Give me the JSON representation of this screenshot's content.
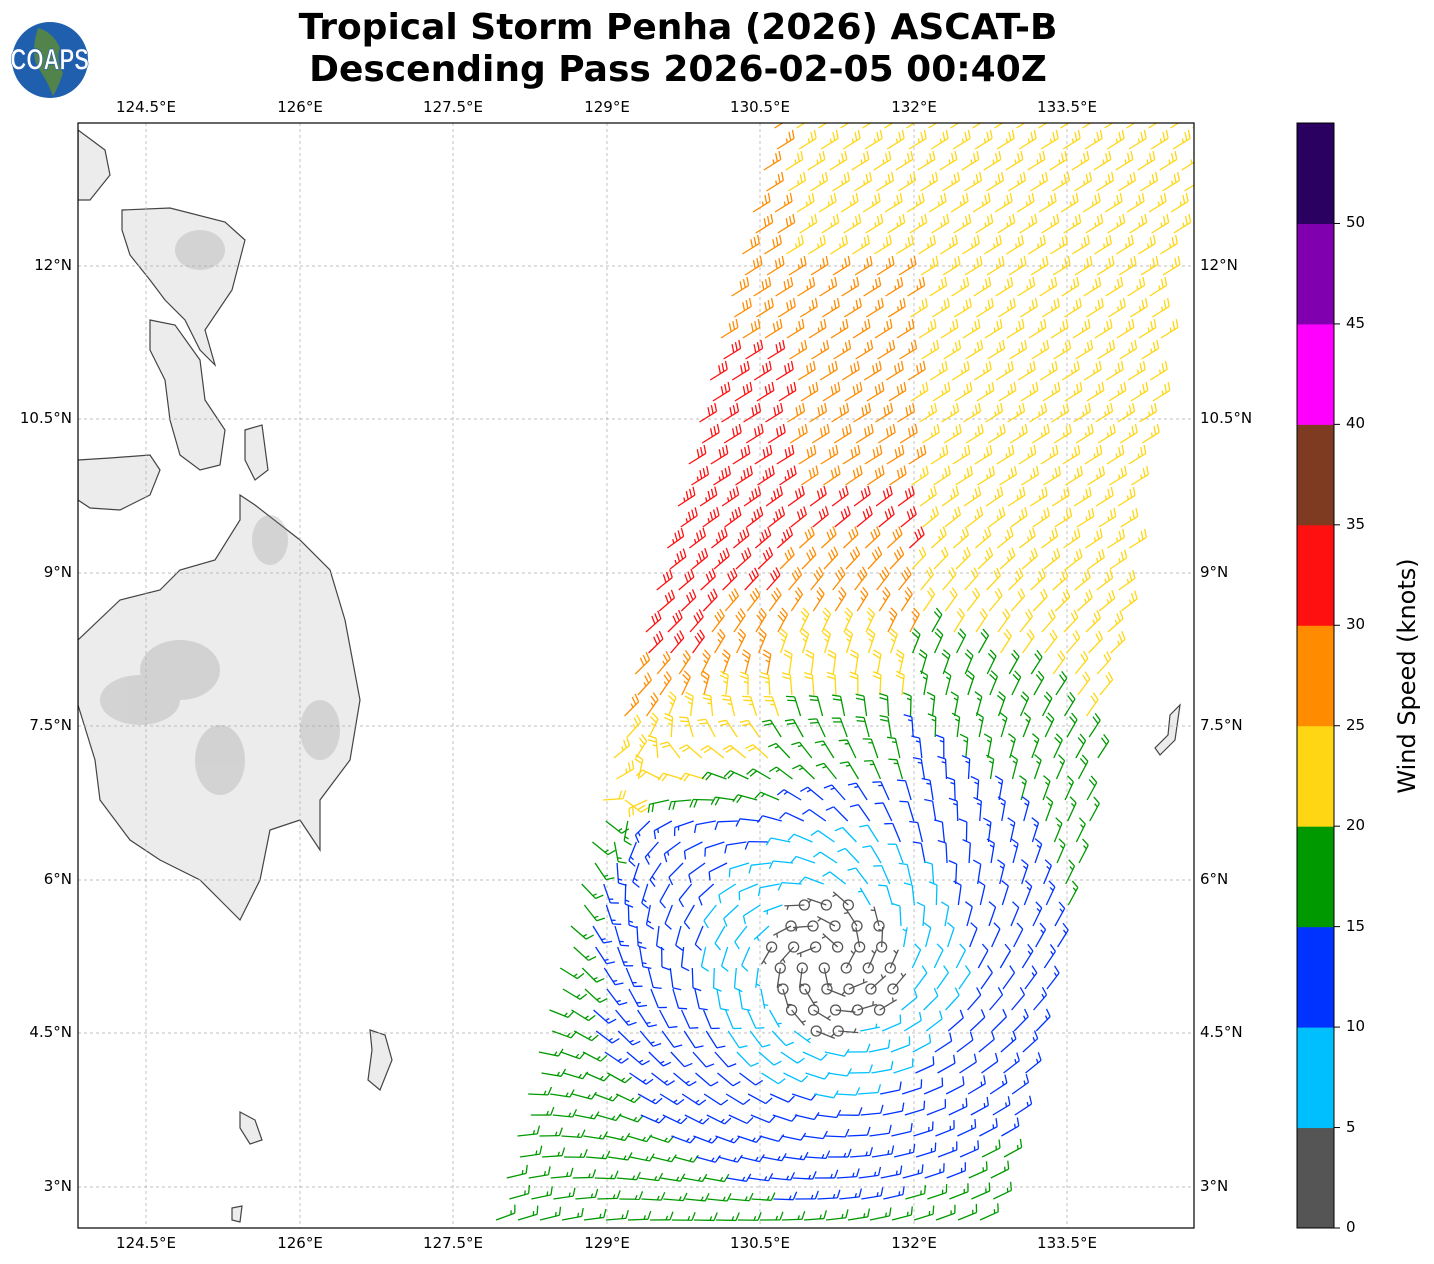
{
  "title": {
    "line1": "Tropical Storm Penha (2026) ASCAT-B",
    "line2": "Descending Pass 2026-02-05 00:40Z"
  },
  "logo": {
    "text": "COAPS"
  },
  "map": {
    "lon_ticks": [
      "124.5°E",
      "126°E",
      "127.5°E",
      "129°E",
      "130.5°E",
      "132°E",
      "133.5°E"
    ],
    "lat_ticks": [
      "12°N",
      "10.5°N",
      "9°N",
      "7.5°N",
      "6°N",
      "4.5°N",
      "3°N"
    ]
  },
  "colorbar": {
    "label": "Wind Speed (knots)",
    "ticks": [
      "0",
      "5",
      "10",
      "15",
      "20",
      "25",
      "30",
      "35",
      "40",
      "45",
      "50"
    ],
    "colors": [
      "#555555",
      "#00bfff",
      "#0033ff",
      "#009900",
      "#ffd614",
      "#ff8c00",
      "#ff1010",
      "#7f3b22",
      "#ff00ff",
      "#8000b0",
      "#2a0060"
    ]
  }
}
